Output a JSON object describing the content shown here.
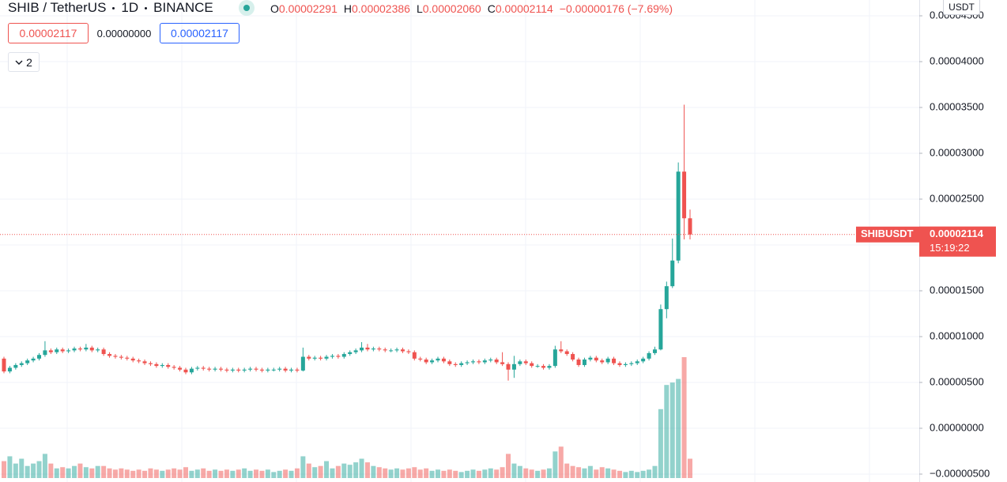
{
  "header": {
    "symbol": "SHIB / TetherUS",
    "interval": "1D",
    "exchange": "BINANCE",
    "ohlc": [
      {
        "label": "O",
        "value": "0.00002291"
      },
      {
        "label": "H",
        "value": "0.00002386"
      },
      {
        "label": "L",
        "value": "0.00002060"
      },
      {
        "label": "C",
        "value": "0.00002114"
      }
    ],
    "change": "−0.00000176 (−7.69%)"
  },
  "buttons": {
    "sell": "0.00002117",
    "spread": "0.00000000",
    "buy": "0.00002117"
  },
  "indicators_count": "2",
  "currency": "USDT",
  "price_tag": {
    "symbol": "SHIBUSDT",
    "price": "0.00002114",
    "countdown": "15:19:22"
  },
  "chart_data": {
    "type": "candlestick",
    "open": [
      7.6e-06,
      6.2e-06,
      6.6e-06,
      6.9e-06,
      7.1e-06,
      7.4e-06,
      7.6e-06,
      8e-06,
      8.5e-06,
      8.3e-06,
      8.6e-06,
      8.4e-06,
      8.5e-06,
      8.7e-06,
      8.6e-06,
      8.8e-06,
      8.5e-06,
      8.6e-06,
      8.1e-06,
      7.9e-06,
      7.8e-06,
      7.7e-06,
      7.6e-06,
      7.4e-06,
      7.3e-06,
      7.1e-06,
      7e-06,
      6.8e-06,
      6.9e-06,
      6.7e-06,
      6.6e-06,
      6.4e-06,
      6.1e-06,
      6.5e-06,
      6.6e-06,
      6.5e-06,
      6.4e-06,
      6.5e-06,
      6.4e-06,
      6.3e-06,
      6.4e-06,
      6.3e-06,
      6.4e-06,
      6.5e-06,
      6.4e-06,
      6.3e-06,
      6.4e-06,
      6.4e-06,
      6.5e-06,
      6.3e-06,
      6.4e-06,
      6.3e-06,
      7.8e-06,
      7.6e-06,
      7.7e-06,
      7.6e-06,
      7.8e-06,
      7.9e-06,
      7.8e-06,
      8.1e-06,
      8.3e-06,
      8.5e-06,
      8.8e-06,
      8.6e-06,
      8.7e-06,
      8.6e-06,
      8.5e-06,
      8.5e-06,
      8.6e-06,
      8.4e-06,
      8.3e-06,
      7.6e-06,
      7.5e-06,
      7.2e-06,
      7.4e-06,
      7.6e-06,
      7.3e-06,
      7e-06,
      6.9e-06,
      7.1e-06,
      7.2e-06,
      7.3e-06,
      7.2e-06,
      7.4e-06,
      7.5e-06,
      7.2e-06,
      7e-06,
      6.4e-06,
      7e-06,
      7.3e-06,
      7.1e-06,
      6.8e-06,
      6.8e-06,
      6.6e-06,
      6.8e-06,
      8.6e-06,
      8.4e-06,
      8.1e-06,
      7.5e-06,
      6.9e-06,
      7.5e-06,
      7.7e-06,
      7.4e-06,
      7.2e-06,
      7.6e-06,
      7.1e-06,
      6.9e-06,
      7e-06,
      7.1e-06,
      7.3e-06,
      7.6e-06,
      8.2e-06,
      8.6e-06,
      1.3e-05,
      1.55e-05,
      1.83e-05,
      2.8e-05,
      2.291e-05
    ],
    "high": [
      7.8e-06,
      6.8e-06,
      7.1e-06,
      7.3e-06,
      7.6e-06,
      7.8e-06,
      8.2e-06,
      9.5e-06,
      8.7e-06,
      8.8e-06,
      8.8e-06,
      8.7e-06,
      8.9e-06,
      8.9e-06,
      9.2e-06,
      9e-06,
      8.8e-06,
      8.8e-06,
      8.3e-06,
      8.1e-06,
      8e-06,
      7.9e-06,
      7.8e-06,
      7.6e-06,
      7.5e-06,
      7.3e-06,
      7.2e-06,
      7.1e-06,
      7.1e-06,
      6.9e-06,
      6.8e-06,
      6.6e-06,
      6.7e-06,
      6.8e-06,
      6.8e-06,
      6.7e-06,
      6.7e-06,
      6.7e-06,
      6.6e-06,
      6.6e-06,
      6.6e-06,
      6.6e-06,
      6.7e-06,
      6.7e-06,
      6.6e-06,
      6.6e-06,
      6.6e-06,
      6.7e-06,
      6.7e-06,
      6.6e-06,
      6.6e-06,
      8.8e-06,
      8e-06,
      7.9e-06,
      7.9e-06,
      8e-06,
      8.1e-06,
      8.1e-06,
      8.3e-06,
      8.5e-06,
      8.7e-06,
      9.4e-06,
      9.2e-06,
      8.9e-06,
      8.9e-06,
      8.8e-06,
      8.7e-06,
      8.8e-06,
      8.8e-06,
      8.6e-06,
      8.5e-06,
      7.8e-06,
      7.7e-06,
      7.6e-06,
      7.8e-06,
      7.8e-06,
      7.5e-06,
      7.2e-06,
      7.3e-06,
      7.4e-06,
      7.5e-06,
      7.5e-06,
      7.6e-06,
      7.7e-06,
      7.7e-06,
      8.3e-06,
      7.2e-06,
      7.9e-06,
      7.5e-06,
      7.5e-06,
      7.3e-06,
      7e-06,
      7e-06,
      7e-06,
      9e-06,
      9.5e-06,
      8.6e-06,
      8.3e-06,
      7.7e-06,
      7.7e-06,
      7.9e-06,
      7.9e-06,
      7.6e-06,
      7.8e-06,
      7.8e-06,
      7.3e-06,
      7.2e-06,
      7.3e-06,
      7.5e-06,
      7.8e-06,
      8.4e-06,
      8.9e-06,
      1.35e-05,
      1.6e-05,
      2.07e-05,
      2.9e-05,
      3.53e-05,
      2.386e-05
    ],
    "low": [
      6e-06,
      6e-06,
      6.4e-06,
      6.7e-06,
      6.9e-06,
      7.2e-06,
      7.4e-06,
      7.8e-06,
      8.1e-06,
      8.1e-06,
      8.2e-06,
      8.2e-06,
      8.3e-06,
      8.4e-06,
      8.4e-06,
      8.3e-06,
      8.3e-06,
      7.9e-06,
      7.7e-06,
      7.6e-06,
      7.5e-06,
      7.4e-06,
      7.2e-06,
      7.1e-06,
      6.9e-06,
      6.8e-06,
      6.6e-06,
      6.6e-06,
      6.5e-06,
      6.4e-06,
      6.2e-06,
      5.9e-06,
      5.9e-06,
      6.3e-06,
      6.3e-06,
      6.2e-06,
      6.2e-06,
      6.2e-06,
      6.1e-06,
      6.1e-06,
      6.1e-06,
      6.1e-06,
      6.2e-06,
      6.2e-06,
      6.1e-06,
      6.1e-06,
      6.2e-06,
      6.2e-06,
      6.1e-06,
      6.1e-06,
      6.1e-06,
      6.2e-06,
      7.4e-06,
      7.4e-06,
      7.4e-06,
      7.4e-06,
      7.6e-06,
      7.6e-06,
      7.6e-06,
      7.9e-06,
      8.1e-06,
      8.3e-06,
      8.4e-06,
      8.4e-06,
      8.4e-06,
      8.3e-06,
      8.3e-06,
      8.3e-06,
      8.2e-06,
      8.1e-06,
      7.4e-06,
      7.3e-06,
      7e-06,
      7e-06,
      7.2e-06,
      7.1e-06,
      6.8e-06,
      6.7e-06,
      6.7e-06,
      6.9e-06,
      7e-06,
      7e-06,
      7e-06,
      7.2e-06,
      7e-06,
      6.8e-06,
      5.2e-06,
      5.5e-06,
      6.8e-06,
      6.9e-06,
      6.6e-06,
      6.6e-06,
      6.4e-06,
      6.4e-06,
      6.6e-06,
      8.2e-06,
      7.9e-06,
      7.3e-06,
      6.7e-06,
      6.7e-06,
      7.3e-06,
      7.2e-06,
      7e-06,
      7e-06,
      6.9e-06,
      6.7e-06,
      6.7e-06,
      6.8e-06,
      6.9e-06,
      7.1e-06,
      7.4e-06,
      8e-06,
      8.5e-06,
      1.2e-05,
      1.53e-05,
      1.8e-05,
      2.06e-05,
      2.06e-05
    ],
    "close": [
      6.2e-06,
      6.6e-06,
      6.9e-06,
      7.1e-06,
      7.4e-06,
      7.6e-06,
      8e-06,
      8.5e-06,
      8.3e-06,
      8.6e-06,
      8.4e-06,
      8.5e-06,
      8.7e-06,
      8.6e-06,
      8.8e-06,
      8.5e-06,
      8.6e-06,
      8.1e-06,
      7.9e-06,
      7.8e-06,
      7.7e-06,
      7.6e-06,
      7.4e-06,
      7.3e-06,
      7.1e-06,
      7e-06,
      6.8e-06,
      6.9e-06,
      6.7e-06,
      6.6e-06,
      6.4e-06,
      6.1e-06,
      6.5e-06,
      6.6e-06,
      6.5e-06,
      6.4e-06,
      6.5e-06,
      6.4e-06,
      6.3e-06,
      6.4e-06,
      6.3e-06,
      6.4e-06,
      6.5e-06,
      6.4e-06,
      6.3e-06,
      6.4e-06,
      6.4e-06,
      6.5e-06,
      6.3e-06,
      6.4e-06,
      6.3e-06,
      7.8e-06,
      7.6e-06,
      7.7e-06,
      7.6e-06,
      7.8e-06,
      7.9e-06,
      7.8e-06,
      8.1e-06,
      8.3e-06,
      8.5e-06,
      8.8e-06,
      8.6e-06,
      8.7e-06,
      8.6e-06,
      8.5e-06,
      8.5e-06,
      8.6e-06,
      8.4e-06,
      8.3e-06,
      7.6e-06,
      7.5e-06,
      7.2e-06,
      7.4e-06,
      7.6e-06,
      7.3e-06,
      7e-06,
      6.9e-06,
      7.1e-06,
      7.2e-06,
      7.3e-06,
      7.2e-06,
      7.4e-06,
      7.5e-06,
      7.2e-06,
      7e-06,
      6.4e-06,
      7e-06,
      7.3e-06,
      7.1e-06,
      6.8e-06,
      6.8e-06,
      6.6e-06,
      6.8e-06,
      8.6e-06,
      8.4e-06,
      8.1e-06,
      7.5e-06,
      6.9e-06,
      7.5e-06,
      7.7e-06,
      7.4e-06,
      7.2e-06,
      7.6e-06,
      7.1e-06,
      6.9e-06,
      7e-06,
      7.1e-06,
      7.3e-06,
      7.6e-06,
      8.2e-06,
      8.6e-06,
      1.3e-05,
      1.55e-05,
      1.83e-05,
      2.8e-05,
      2.291e-05,
      2.114e-05
    ],
    "volume": [
      14,
      18,
      12,
      16,
      10,
      12,
      14,
      20,
      12,
      8,
      9,
      8,
      10,
      12,
      9,
      8,
      10,
      10,
      8,
      7,
      8,
      7,
      6,
      7,
      6,
      8,
      7,
      6,
      7,
      8,
      7,
      9,
      6,
      7,
      8,
      6,
      7,
      6,
      7,
      6,
      7,
      8,
      6,
      7,
      6,
      7,
      5,
      6,
      7,
      6,
      8,
      18,
      12,
      9,
      10,
      14,
      8,
      10,
      12,
      11,
      13,
      16,
      13,
      10,
      9,
      8,
      7,
      8,
      7,
      8,
      9,
      7,
      8,
      6,
      7,
      6,
      7,
      6,
      5,
      6,
      7,
      6,
      7,
      8,
      7,
      9,
      20,
      12,
      10,
      8,
      7,
      6,
      7,
      8,
      22,
      26,
      12,
      10,
      9,
      8,
      10,
      7,
      9,
      8,
      7,
      6,
      5,
      6,
      5,
      6,
      7,
      10,
      57,
      77,
      79,
      82,
      100,
      16
    ],
    "up_color": "#26a69a",
    "down_color": "#ef5350",
    "ylim": [
      -5.862e-06,
      4.6724e-05
    ],
    "yticks": [
      {
        "value": -5e-06,
        "label": "−0.00000500"
      },
      {
        "value": 0,
        "label": "0.00000000"
      },
      {
        "value": 5e-06,
        "label": "0.00000500"
      },
      {
        "value": 1e-05,
        "label": "0.00001000"
      },
      {
        "value": 1.5e-05,
        "label": "0.00001500"
      },
      {
        "value": 2e-05,
        "label": "0.00002000"
      },
      {
        "value": 2.5e-05,
        "label": "0.00002500"
      },
      {
        "value": 3e-05,
        "label": "0.00003000"
      },
      {
        "value": 3.5e-05,
        "label": "0.00003500"
      },
      {
        "value": 4e-05,
        "label": "0.00004000"
      },
      {
        "value": 4.5e-05,
        "label": "0.00004500"
      }
    ],
    "grid": true
  }
}
